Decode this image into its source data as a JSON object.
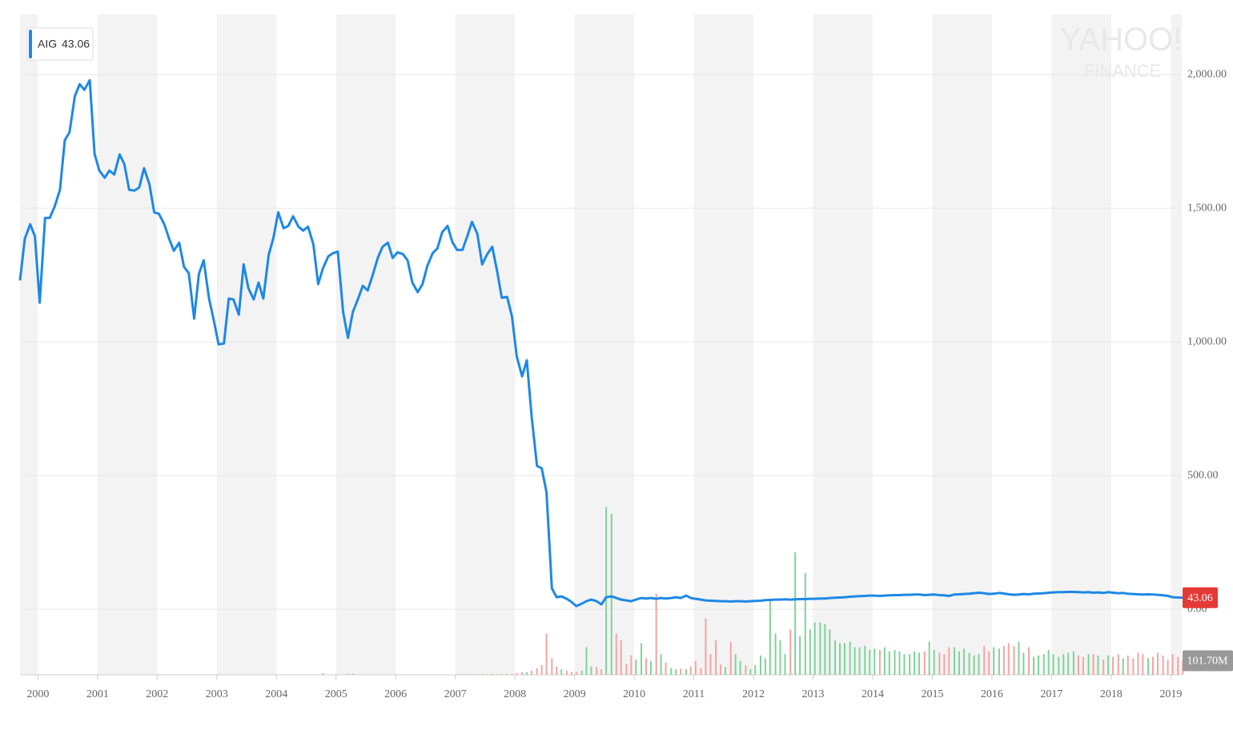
{
  "chart_data": {
    "type": "line",
    "series": [
      {
        "name": "AIG",
        "color": "#1e88e5",
        "values": [
          1230,
          1386,
          1440,
          1395,
          1147,
          1464,
          1464,
          1506,
          1569,
          1754,
          1784,
          1919,
          1964,
          1943,
          1979,
          1704,
          1641,
          1614,
          1641,
          1626,
          1701,
          1665,
          1569,
          1566,
          1578,
          1650,
          1590,
          1485,
          1479,
          1440,
          1386,
          1341,
          1371,
          1281,
          1257,
          1087,
          1254,
          1305,
          1162,
          1081,
          991,
          994,
          1162,
          1159,
          1102,
          1290,
          1201,
          1159,
          1222,
          1162,
          1326,
          1389,
          1485,
          1425,
          1434,
          1470,
          1431,
          1416,
          1431,
          1365,
          1216,
          1275,
          1320,
          1332,
          1338,
          1111,
          1015,
          1111,
          1162,
          1210,
          1192,
          1254,
          1314,
          1356,
          1371,
          1314,
          1335,
          1329,
          1305,
          1222,
          1186,
          1216,
          1284,
          1332,
          1350,
          1410,
          1434,
          1374,
          1344,
          1344,
          1395,
          1449,
          1404,
          1290,
          1326,
          1356,
          1266,
          1165,
          1168,
          1096,
          946,
          871,
          931,
          721,
          536,
          527,
          437,
          78,
          45,
          48,
          39,
          27,
          12,
          21,
          30,
          36,
          30,
          18,
          45,
          48,
          42,
          36,
          33,
          30,
          36,
          42,
          40,
          42,
          39,
          42,
          40,
          42,
          45,
          42,
          51,
          42,
          39,
          36,
          33,
          32,
          31,
          30,
          30,
          29,
          30,
          30,
          29,
          30,
          31,
          32,
          34,
          35,
          36,
          36,
          37,
          36,
          37,
          38,
          38,
          39,
          39,
          40,
          40,
          42,
          43,
          44,
          45,
          47,
          48,
          49,
          50,
          51,
          51,
          50,
          51,
          52,
          53,
          53,
          54,
          54,
          55,
          55,
          53,
          54,
          55,
          53,
          52,
          50,
          55,
          56,
          57,
          58,
          60,
          62,
          60,
          57,
          58,
          61,
          59,
          56,
          54,
          55,
          57,
          56,
          58,
          59,
          60,
          62,
          63,
          64,
          64,
          65,
          65,
          64,
          63,
          64,
          62,
          63,
          61,
          64,
          62,
          60,
          61,
          58,
          57,
          56,
          55,
          56,
          55,
          54,
          52,
          50,
          45,
          44,
          43.06
        ]
      }
    ],
    "last_price_label": "43.06",
    "x": [
      1999.7,
      1999.78,
      1999.87,
      1999.95,
      2000.03,
      2000.12,
      2000.2,
      2000.28,
      2000.37,
      2000.45,
      2000.53,
      2000.62,
      2000.7,
      2000.78,
      2000.87,
      2000.95,
      2001.03,
      2001.12,
      2001.2,
      2001.28,
      2001.37,
      2001.45,
      2001.53,
      2001.62,
      2001.7,
      2001.78,
      2001.87,
      2001.95,
      2002.03,
      2002.12,
      2002.2,
      2002.28,
      2002.37,
      2002.45,
      2002.53,
      2002.62,
      2002.7,
      2002.78,
      2002.87,
      2002.95,
      2003.03,
      2003.12,
      2003.2,
      2003.28,
      2003.37,
      2003.45,
      2003.53,
      2003.62,
      2003.7,
      2003.78,
      2003.87,
      2003.95,
      2004.03,
      2004.12,
      2004.2,
      2004.28,
      2004.37,
      2004.45,
      2004.53,
      2004.62,
      2004.7,
      2004.78,
      2004.87,
      2004.95,
      2005.03,
      2005.12,
      2005.2,
      2005.28,
      2005.37,
      2005.45,
      2005.53,
      2005.62,
      2005.7,
      2005.78,
      2005.87,
      2005.95,
      2006.03,
      2006.12,
      2006.2,
      2006.28,
      2006.37,
      2006.45,
      2006.53,
      2006.62,
      2006.7,
      2006.78,
      2006.87,
      2006.95,
      2007.03,
      2007.12,
      2007.2,
      2007.28,
      2007.37,
      2007.45,
      2007.53,
      2007.62,
      2007.7,
      2007.78,
      2007.87,
      2007.95,
      2008.03,
      2008.12,
      2008.2,
      2008.28,
      2008.37,
      2008.45,
      2008.53,
      2008.62,
      2008.7,
      2008.78,
      2008.87,
      2008.95,
      2009.03,
      2009.12,
      2009.2,
      2009.28,
      2009.37,
      2009.45,
      2009.53,
      2009.62,
      2009.7,
      2009.78,
      2009.87,
      2009.95,
      2010.03,
      2010.12,
      2010.2,
      2010.28,
      2010.37,
      2010.45,
      2010.53,
      2010.62,
      2010.7,
      2010.78,
      2010.87,
      2010.95,
      2011.03,
      2011.12,
      2011.2,
      2011.28,
      2011.37,
      2011.45,
      2011.53,
      2011.62,
      2011.7,
      2011.78,
      2011.87,
      2011.95,
      2012.03,
      2012.12,
      2012.2,
      2012.28,
      2012.37,
      2012.45,
      2012.53,
      2012.62,
      2012.7,
      2012.78,
      2012.87,
      2012.95,
      2013.03,
      2013.12,
      2013.2,
      2013.28,
      2013.37,
      2013.45,
      2013.53,
      2013.62,
      2013.7,
      2013.78,
      2013.87,
      2013.95,
      2014.03,
      2014.12,
      2014.2,
      2014.28,
      2014.37,
      2014.45,
      2014.53,
      2014.62,
      2014.7,
      2014.78,
      2014.87,
      2014.95,
      2015.03,
      2015.12,
      2015.2,
      2015.28,
      2015.37,
      2015.45,
      2015.53,
      2015.62,
      2015.7,
      2015.78,
      2015.87,
      2015.95,
      2016.03,
      2016.12,
      2016.2,
      2016.28,
      2016.37,
      2016.45,
      2016.53,
      2016.62,
      2016.7,
      2016.78,
      2016.87,
      2016.95,
      2017.03,
      2017.12,
      2017.2,
      2017.28,
      2017.37,
      2017.45,
      2017.53,
      2017.62,
      2017.7,
      2017.78,
      2017.87,
      2017.95,
      2018.03,
      2018.12,
      2018.2,
      2018.28,
      2018.37,
      2018.45,
      2018.53,
      2018.62,
      2018.7,
      2018.78,
      2018.87,
      2018.95,
      2019.03,
      2019.12,
      2019.2
    ],
    "volume": {
      "axis": "y2",
      "up_color": "#7ed39a",
      "down_color": "#f5a3a3",
      "value_label": "101.70M",
      "values": [
        null,
        null,
        null,
        null,
        null,
        null,
        null,
        null,
        null,
        null,
        null,
        null,
        null,
        null,
        null,
        null,
        null,
        null,
        null,
        null,
        null,
        null,
        null,
        null,
        null,
        null,
        null,
        null,
        null,
        null,
        null,
        null,
        null,
        null,
        null,
        null,
        null,
        null,
        null,
        null,
        null,
        null,
        null,
        null,
        null,
        null,
        null,
        null,
        null,
        null,
        null,
        null,
        null,
        null,
        null,
        null,
        null,
        null,
        null,
        null,
        null,
        10,
        null,
        null,
        null,
        null,
        8,
        8,
        null,
        null,
        null,
        null,
        null,
        null,
        null,
        null,
        null,
        null,
        null,
        null,
        null,
        null,
        null,
        null,
        null,
        null,
        null,
        null,
        3,
        3,
        4,
        3,
        3,
        4,
        4,
        5,
        5,
        6,
        6,
        8,
        12,
        18,
        18,
        30,
        47,
        70,
        300,
        120,
        60,
        40,
        30,
        20,
        20,
        30,
        200,
        60,
        55,
        40,
        1220,
        1170,
        300,
        250,
        80,
        140,
        110,
        230,
        120,
        100,
        590,
        150,
        90,
        50,
        40,
        45,
        40,
        60,
        100,
        50,
        410,
        150,
        250,
        75,
        55,
        240,
        150,
        100,
        70,
        40,
        70,
        140,
        120,
        550,
        300,
        250,
        150,
        330,
        890,
        280,
        740,
        330,
        380,
        380,
        370,
        330,
        250,
        230,
        230,
        240,
        200,
        200,
        210,
        180,
        190,
        180,
        200,
        170,
        180,
        170,
        150,
        150,
        170,
        160,
        170,
        240,
        180,
        160,
        150,
        200,
        200,
        170,
        190,
        160,
        140,
        150,
        210,
        170,
        200,
        190,
        210,
        230,
        210,
        240,
        160,
        200,
        130,
        140,
        150,
        180,
        150,
        130,
        150,
        160,
        170,
        140,
        130,
        150,
        150,
        140,
        110,
        140,
        130,
        150,
        120,
        140,
        120,
        160,
        150,
        120,
        130,
        160,
        140,
        110,
        150,
        130,
        101.7
      ]
    },
    "xlim": [
      1999.7,
      2019.17
    ],
    "xticks": [
      2000,
      2001,
      2002,
      2003,
      2004,
      2005,
      2006,
      2007,
      2008,
      2009,
      2010,
      2011,
      2012,
      2013,
      2014,
      2015,
      2016,
      2017,
      2018,
      2019
    ],
    "ylim": [
      -245,
      2225
    ],
    "yticks": [
      {
        "value": 0,
        "label": "0.00"
      },
      {
        "value": 500,
        "label": "500.00"
      },
      {
        "value": 1000,
        "label": "1,000.00"
      },
      {
        "value": 1500,
        "label": "1,500.00"
      },
      {
        "value": 2000,
        "label": "2,000.00"
      }
    ],
    "y2lim": [
      0,
      1200
    ],
    "grid": true,
    "watermark": [
      "YAHOO!",
      "FINANCE"
    ]
  }
}
